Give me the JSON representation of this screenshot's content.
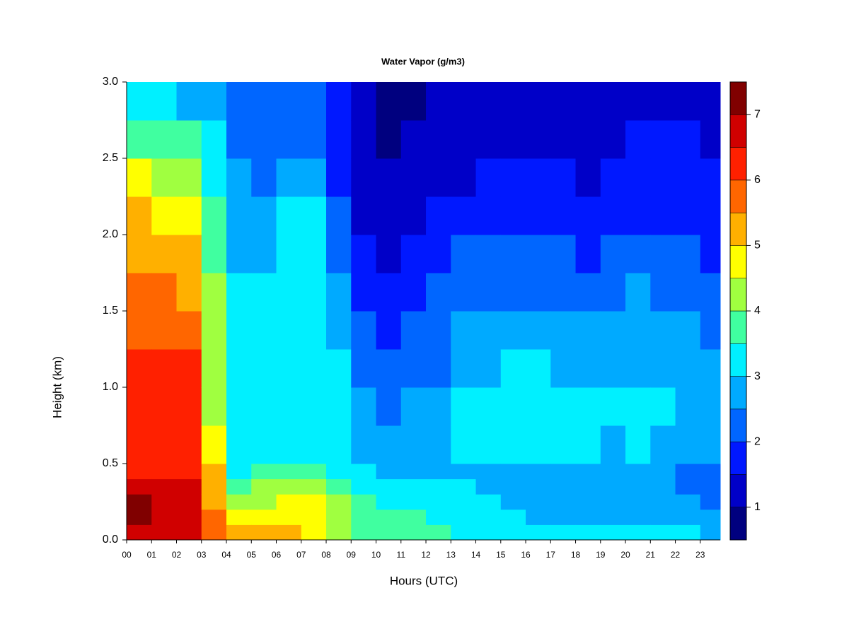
{
  "chart_data": {
    "type": "heatmap",
    "title": "Water Vapor (g/m3)",
    "xlabel": "Hours (UTC)",
    "ylabel": "Height (km)",
    "xlim": [
      0,
      23.8
    ],
    "ylim": [
      0,
      3
    ],
    "xticks": [
      {
        "value": 0,
        "label": "00"
      },
      {
        "value": 1,
        "label": "01"
      },
      {
        "value": 2,
        "label": "02"
      },
      {
        "value": 3,
        "label": "03"
      },
      {
        "value": 4,
        "label": "04"
      },
      {
        "value": 5,
        "label": "05"
      },
      {
        "value": 6,
        "label": "06"
      },
      {
        "value": 7,
        "label": "07"
      },
      {
        "value": 8,
        "label": "08"
      },
      {
        "value": 9,
        "label": "09"
      },
      {
        "value": 10,
        "label": "10"
      },
      {
        "value": 11,
        "label": "11"
      },
      {
        "value": 12,
        "label": "12"
      },
      {
        "value": 13,
        "label": "13"
      },
      {
        "value": 14,
        "label": "14"
      },
      {
        "value": 15,
        "label": "15"
      },
      {
        "value": 16,
        "label": "16"
      },
      {
        "value": 17,
        "label": "17"
      },
      {
        "value": 18,
        "label": "18"
      },
      {
        "value": 19,
        "label": "19"
      },
      {
        "value": 20,
        "label": "20"
      },
      {
        "value": 21,
        "label": "21"
      },
      {
        "value": 22,
        "label": "22"
      },
      {
        "value": 23,
        "label": "23"
      }
    ],
    "yticks": [
      {
        "value": 0,
        "label": "0.0"
      },
      {
        "value": 0.5,
        "label": "0.5"
      },
      {
        "value": 1,
        "label": "1.0"
      },
      {
        "value": 1.5,
        "label": "1.5"
      },
      {
        "value": 2,
        "label": "2.0"
      },
      {
        "value": 2.5,
        "label": "2.5"
      },
      {
        "value": 3,
        "label": "3.0"
      }
    ],
    "x_bins": [
      0,
      1,
      2,
      3,
      4,
      5,
      6,
      7,
      8,
      9,
      10,
      11,
      12,
      13,
      14,
      15,
      16,
      17,
      18,
      19,
      20,
      21,
      22,
      23,
      23.8
    ],
    "y_bins": [
      0,
      0.1,
      0.2,
      0.3,
      0.4,
      0.5,
      0.75,
      1,
      1.25,
      1.5,
      1.75,
      2,
      2.25,
      2.5,
      2.75,
      3
    ],
    "values": [
      [
        6.8,
        7.1,
        7.0,
        6.6,
        6.3,
        6.3,
        6.3,
        6.2,
        5.8,
        5.8,
        5.3,
        5.0,
        4.5,
        3.8,
        3.2
      ],
      [
        6.6,
        6.9,
        6.9,
        6.5,
        6.3,
        6.4,
        6.4,
        6.1,
        5.8,
        5.6,
        5.2,
        4.8,
        4.3,
        3.6,
        3.0
      ],
      [
        6.6,
        6.8,
        6.8,
        6.5,
        6.2,
        6.2,
        6.2,
        6.0,
        5.8,
        5.4,
        5.0,
        4.6,
        4.2,
        3.5,
        2.8
      ],
      [
        5.8,
        5.6,
        5.4,
        5.3,
        5.0,
        4.5,
        4.4,
        4.3,
        4.2,
        4.0,
        3.8,
        3.6,
        3.4,
        3.0,
        2.6
      ],
      [
        5.0,
        4.6,
        4.2,
        3.8,
        3.4,
        3.2,
        3.1,
        3.1,
        3.0,
        3.0,
        2.9,
        2.7,
        2.5,
        2.3,
        2.2
      ],
      [
        5.3,
        4.8,
        4.4,
        4.0,
        3.6,
        3.3,
        3.2,
        3.2,
        3.1,
        3.0,
        2.9,
        2.6,
        2.3,
        2.2,
        2.1
      ],
      [
        5.0,
        4.8,
        4.5,
        4.2,
        3.6,
        3.3,
        3.2,
        3.2,
        3.1,
        3.1,
        3.1,
        3.0,
        2.6,
        2.3,
        2.2
      ],
      [
        4.8,
        4.7,
        4.5,
        4.1,
        3.6,
        3.2,
        3.2,
        3.2,
        3.1,
        3.1,
        3.1,
        3.0,
        2.8,
        2.4,
        2.2
      ],
      [
        4.3,
        4.2,
        4.0,
        3.8,
        3.3,
        3.1,
        3.0,
        3.0,
        2.8,
        2.6,
        2.3,
        2.1,
        1.9,
        1.7,
        1.6
      ],
      [
        3.9,
        3.7,
        3.6,
        3.4,
        3.0,
        2.6,
        2.5,
        2.3,
        2.1,
        1.9,
        1.6,
        1.4,
        1.3,
        1.2,
        1.1
      ],
      [
        3.7,
        3.6,
        3.4,
        3.2,
        2.8,
        2.6,
        2.4,
        2.1,
        1.9,
        1.7,
        1.4,
        1.2,
        1.0,
        0.9,
        0.8
      ],
      [
        3.6,
        3.5,
        3.3,
        3.0,
        2.8,
        2.6,
        2.5,
        2.3,
        2.1,
        1.9,
        1.6,
        1.3,
        1.1,
        1.0,
        0.9
      ],
      [
        3.5,
        3.3,
        3.1,
        3.0,
        2.8,
        2.6,
        2.5,
        2.4,
        2.2,
        2.0,
        1.8,
        1.5,
        1.2,
        1.1,
        1.0
      ],
      [
        3.4,
        3.2,
        3.1,
        3.0,
        2.8,
        3.0,
        3.0,
        2.8,
        2.6,
        2.3,
        2.0,
        1.7,
        1.4,
        1.2,
        1.1
      ],
      [
        3.3,
        3.1,
        3.0,
        2.9,
        2.8,
        3.0,
        3.1,
        2.9,
        2.7,
        2.3,
        2.1,
        1.8,
        1.5,
        1.3,
        1.2
      ],
      [
        3.2,
        3.0,
        2.9,
        2.8,
        2.7,
        3.0,
        3.1,
        3.0,
        2.7,
        2.4,
        2.1,
        1.8,
        1.5,
        1.3,
        1.2
      ],
      [
        3.1,
        2.9,
        2.8,
        2.7,
        2.6,
        3.0,
        3.1,
        3.0,
        2.7,
        2.4,
        2.1,
        1.8,
        1.5,
        1.4,
        1.2
      ],
      [
        3.1,
        2.8,
        2.7,
        2.6,
        2.6,
        3.0,
        3.1,
        2.9,
        2.6,
        2.3,
        2.0,
        1.7,
        1.5,
        1.3,
        1.2
      ],
      [
        3.0,
        2.8,
        2.6,
        2.6,
        2.6,
        3.0,
        3.0,
        2.9,
        2.6,
        2.3,
        1.9,
        1.6,
        1.4,
        1.3,
        1.2
      ],
      [
        3.0,
        2.8,
        2.6,
        2.6,
        2.6,
        2.9,
        3.0,
        2.9,
        2.6,
        2.3,
        2.0,
        1.7,
        1.5,
        1.4,
        1.3
      ],
      [
        3.0,
        2.8,
        2.6,
        2.5,
        2.6,
        3.0,
        3.1,
        2.9,
        2.7,
        2.5,
        2.2,
        1.9,
        1.7,
        1.5,
        1.4
      ],
      [
        3.0,
        2.8,
        2.6,
        2.5,
        2.5,
        2.9,
        3.0,
        2.9,
        2.6,
        2.4,
        2.1,
        1.8,
        1.6,
        1.5,
        1.4
      ],
      [
        3.0,
        2.7,
        2.5,
        2.4,
        2.4,
        2.7,
        2.9,
        2.7,
        2.5,
        2.3,
        2.1,
        1.8,
        1.6,
        1.5,
        1.4
      ],
      [
        2.9,
        2.6,
        2.4,
        2.3,
        2.3,
        2.5,
        2.6,
        2.5,
        2.3,
        2.1,
        1.9,
        1.7,
        1.5,
        1.4,
        1.3
      ]
    ],
    "colorbar": {
      "levels": [
        0.5,
        1,
        1.5,
        2,
        2.5,
        3,
        3.5,
        4,
        4.5,
        5,
        5.5,
        6,
        6.5,
        7,
        7.5
      ],
      "colors": [
        "#00007f",
        "#0000c8",
        "#0018ff",
        "#0066ff",
        "#00aaff",
        "#00f0ff",
        "#40ffa0",
        "#a0ff40",
        "#ffff00",
        "#ffb000",
        "#ff6600",
        "#ff2000",
        "#d00000",
        "#800000"
      ],
      "ticks": [
        1,
        2,
        3,
        4,
        5,
        6,
        7
      ]
    }
  }
}
